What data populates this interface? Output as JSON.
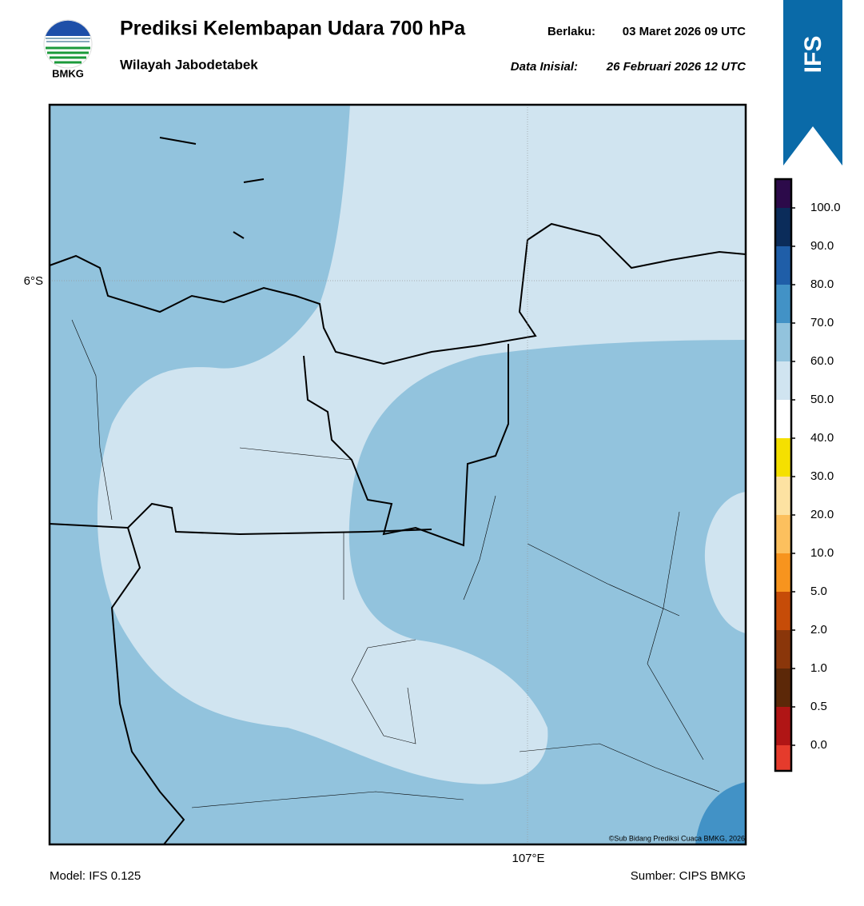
{
  "header": {
    "logo_text": "BMKG",
    "title": "Prediksi Kelembapan Udara 700 hPa",
    "subtitle": "Wilayah Jabodetabek",
    "valid_label": "Berlaku:",
    "valid_time": "03 Maret 2026 09 UTC",
    "init_label": "Data Inisial:",
    "init_time": "26 Februari 2026 12 UTC",
    "badge": "IFS"
  },
  "map": {
    "lat_label": "6°S",
    "lon_label": "107°E",
    "credit": "©Sub Bidang Prediksi Cuaca BMKG, 2026"
  },
  "colorbar": {
    "segments": [
      {
        "color": "#e53b2c"
      },
      {
        "color": "#b01515",
        "label": "0.0"
      },
      {
        "color": "#5c2808",
        "label": "0.5"
      },
      {
        "color": "#8a360a",
        "label": "1.0"
      },
      {
        "color": "#c64c08",
        "label": "2.0"
      },
      {
        "color": "#f7941e",
        "label": "5.0"
      },
      {
        "color": "#fcc05e",
        "label": "10.0"
      },
      {
        "color": "#fde2a2",
        "label": "20.0"
      },
      {
        "color": "#f5e000",
        "label": "30.0"
      },
      {
        "color": "#ffffff",
        "label": "40.0"
      },
      {
        "color": "#d0e4f0",
        "label": "50.0"
      },
      {
        "color": "#92c3dd",
        "label": "60.0"
      },
      {
        "color": "#4292c6",
        "label": "70.0"
      },
      {
        "color": "#1f5ea8",
        "label": "80.0"
      },
      {
        "color": "#0b2c5a",
        "label": "90.0"
      },
      {
        "color": "#2c0a4a",
        "label": "100.0"
      }
    ]
  },
  "footer": {
    "model": "Model: IFS 0.125",
    "source": "Sumber: CIPS BMKG"
  }
}
